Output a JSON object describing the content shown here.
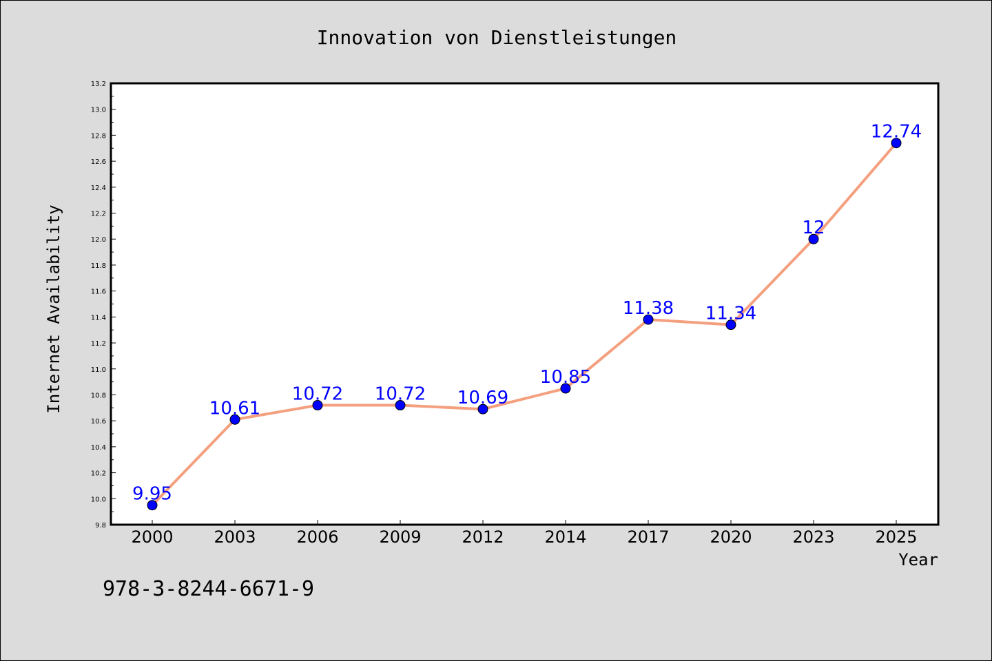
{
  "chart_data": {
    "type": "line",
    "title": "Innovation von Dienstleistungen",
    "xlabel": "Year",
    "ylabel": "Internet Availability",
    "categories": [
      "2000",
      "2003",
      "2006",
      "2009",
      "2012",
      "2014",
      "2017",
      "2020",
      "2023",
      "2025"
    ],
    "series": [
      {
        "values": [
          9.95,
          10.61,
          10.72,
          10.72,
          10.69,
          10.85,
          11.38,
          11.34,
          12,
          12.74
        ],
        "labels": [
          "9.95",
          "10.61",
          "10.72",
          "10.72",
          "10.69",
          "10.85",
          "11.38",
          "11.34",
          "12",
          "12.74"
        ]
      }
    ],
    "ylim": [
      9.8,
      13.2
    ],
    "yticks": [
      "9.8",
      "10.0",
      "10.2",
      "10.4",
      "10.6",
      "10.8",
      "11.0",
      "11.2",
      "11.4",
      "11.6",
      "11.8",
      "12.0",
      "12.2",
      "12.4",
      "12.6",
      "12.8",
      "13.0",
      "13.2"
    ],
    "grid": false,
    "colors": {
      "line": "#f4a07f",
      "marker": "#0000ff",
      "label": "#0000ff",
      "background": "#dcdcdc",
      "plot_area": "#ffffff"
    }
  },
  "footer": {
    "isbn": "978-3-8244-6671-9"
  }
}
